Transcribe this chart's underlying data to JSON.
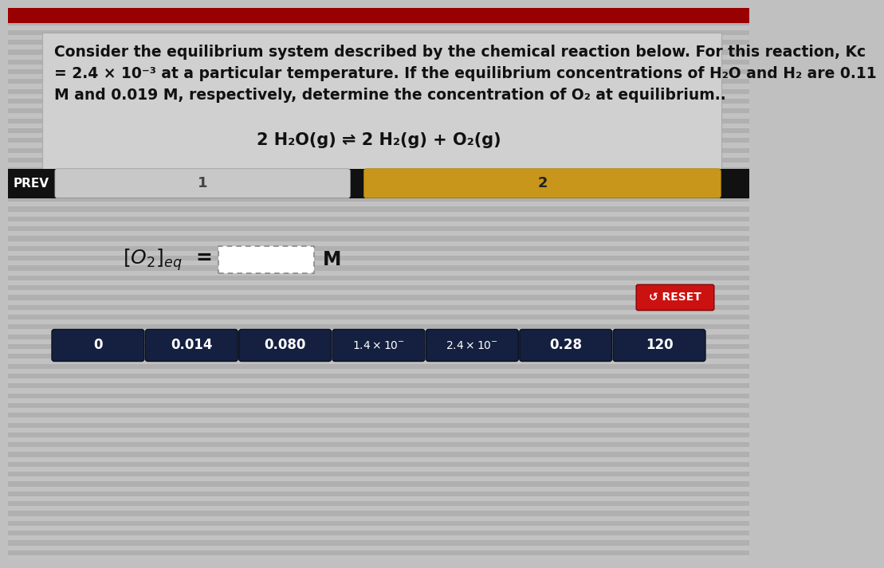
{
  "bg_stripe_light": "#bebebe",
  "bg_stripe_dark": "#ababab",
  "top_section_bg": "#c8c8c8",
  "question_text_line1": "Consider the equilibrium system described by the chemical reaction below. For this reaction, Kc",
  "question_text_line2": "= 2.4 × 10⁻³ at a particular temperature. If the equilibrium concentrations of H₂O and H₂ are 0.11",
  "question_text_line3": "M and 0.019 M, respectively, determine the concentration of O₂ at equilibrium..",
  "equation": "2 H₂O(g) ⇌ 2 H₂(g) + O₂(g)",
  "prev_text": "PREV",
  "nav_label_1": "1",
  "nav_label_2": "2",
  "nav_dark_color": "#111111",
  "nav_segment1_color": "#c8c8c8",
  "nav_segment2_color": "#c8961a",
  "reset_btn_color": "#cc1111",
  "reset_text": "↺ RESET",
  "button_labels": [
    "0",
    "0.014",
    "0.080",
    "1.4 × 10⁻",
    "2.4 × 10⁻",
    "0.28",
    "120"
  ],
  "button_color": "#152040",
  "button_text_color": "#ffffff"
}
